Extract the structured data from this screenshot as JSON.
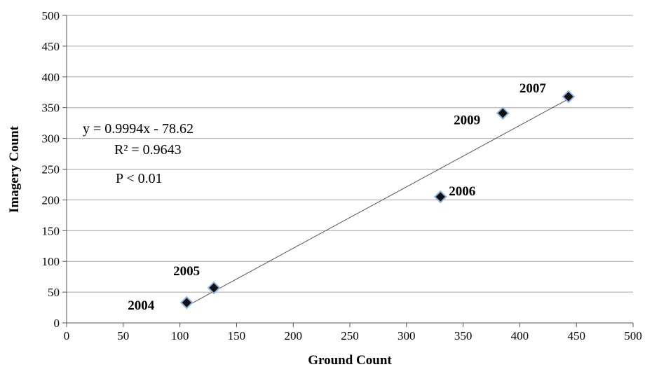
{
  "chart_data": {
    "type": "scatter",
    "title": "",
    "xlabel": "Ground Count",
    "ylabel": "Imagery Count",
    "xlim": [
      0,
      500
    ],
    "ylim": [
      0,
      500
    ],
    "x_ticks": [
      0,
      50,
      100,
      150,
      200,
      250,
      300,
      350,
      400,
      450,
      500
    ],
    "y_ticks": [
      0,
      50,
      100,
      150,
      200,
      250,
      300,
      350,
      400,
      450,
      500
    ],
    "grid": "horizontal",
    "points": [
      {
        "label": "2004",
        "x": 106,
        "y": 33
      },
      {
        "label": "2005",
        "x": 130,
        "y": 57
      },
      {
        "label": "2006",
        "x": 330,
        "y": 205
      },
      {
        "label": "2009",
        "x": 385,
        "y": 341
      },
      {
        "label": "2007",
        "x": 443,
        "y": 368
      }
    ],
    "trendline": {
      "slope": 0.9994,
      "intercept": -78.62,
      "x_range": [
        106,
        443
      ]
    },
    "annotations": {
      "equation": "y = 0.9994x  - 78.62",
      "r_squared": "R² = 0.9643",
      "p_value": "P < 0.01"
    },
    "colors": {
      "marker_fill": "#111111",
      "marker_stroke": "#8db3e2",
      "grid": "#a6a6a6",
      "trendline": "#555555"
    }
  }
}
